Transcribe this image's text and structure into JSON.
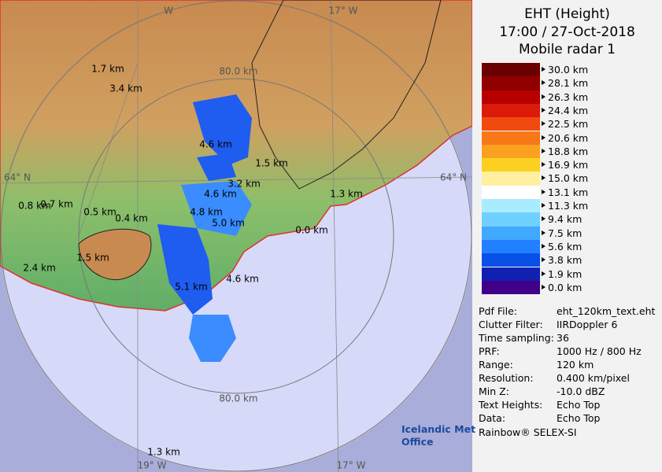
{
  "header": {
    "title": "EHT (Height)",
    "time": "17:00 / 27-Oct-2018",
    "radar": "Mobile radar 1"
  },
  "legend": {
    "items": [
      {
        "label": "30.0 km",
        "color": "#6a0000"
      },
      {
        "label": "28.1 km",
        "color": "#900000"
      },
      {
        "label": "26.3 km",
        "color": "#b80000"
      },
      {
        "label": "24.4 km",
        "color": "#dc1a0a"
      },
      {
        "label": "22.5 km",
        "color": "#f04a10"
      },
      {
        "label": "20.6 km",
        "color": "#f87818"
      },
      {
        "label": "18.8 km",
        "color": "#fca020"
      },
      {
        "label": "16.9 km",
        "color": "#fcd020"
      },
      {
        "label": "15.0 km",
        "color": "#fef0a0"
      },
      {
        "label": "13.1 km",
        "color": "#ffffff"
      },
      {
        "label": "11.3 km",
        "color": "#a8ecff"
      },
      {
        "label": "9.4 km",
        "color": "#70d0ff"
      },
      {
        "label": "7.5 km",
        "color": "#40a8ff"
      },
      {
        "label": "5.6 km",
        "color": "#2080ff"
      },
      {
        "label": "3.8 km",
        "color": "#0850e8"
      },
      {
        "label": "1.9 km",
        "color": "#1020b0"
      },
      {
        "label": "0.0 km",
        "color": "#400088"
      }
    ]
  },
  "info": {
    "rows": [
      [
        "Pdf File:",
        "eht_120km_text.eht"
      ],
      [
        "Clutter Filter:",
        "IIRDoppler 6"
      ],
      [
        "Time sampling:",
        "36"
      ],
      [
        "PRF:",
        "1000 Hz / 800 Hz"
      ],
      [
        "Range:",
        "120 km"
      ],
      [
        "Resolution:",
        "0.400 km/pixel"
      ],
      [
        "Min Z:",
        "-10.0 dBZ"
      ],
      [
        "Text Heights:",
        "Echo Top"
      ],
      [
        "Data:",
        "Echo Top"
      ]
    ],
    "footer": "Rainbow® SELEX-SI"
  },
  "logo": {
    "line1": "Icelandic Met",
    "line2": "Office"
  },
  "map": {
    "labels": [
      "W",
      "17° W",
      "1.7 km",
      "3.4 km",
      "80.0 km",
      "4.6 km",
      "1.5 km",
      "64° N",
      "64° N",
      "3.2 km",
      "4.6 km",
      "1.3 km",
      "0.8 km",
      "0.7 km",
      "0.5 km",
      "0.4 km",
      "4.8 km",
      "5.0 km",
      "0.0 km",
      "1.5 km",
      "2.4 km",
      "4.6 km",
      "5.1 km",
      "80.0 km",
      "1.3 km",
      "19° W",
      "17° W"
    ]
  }
}
